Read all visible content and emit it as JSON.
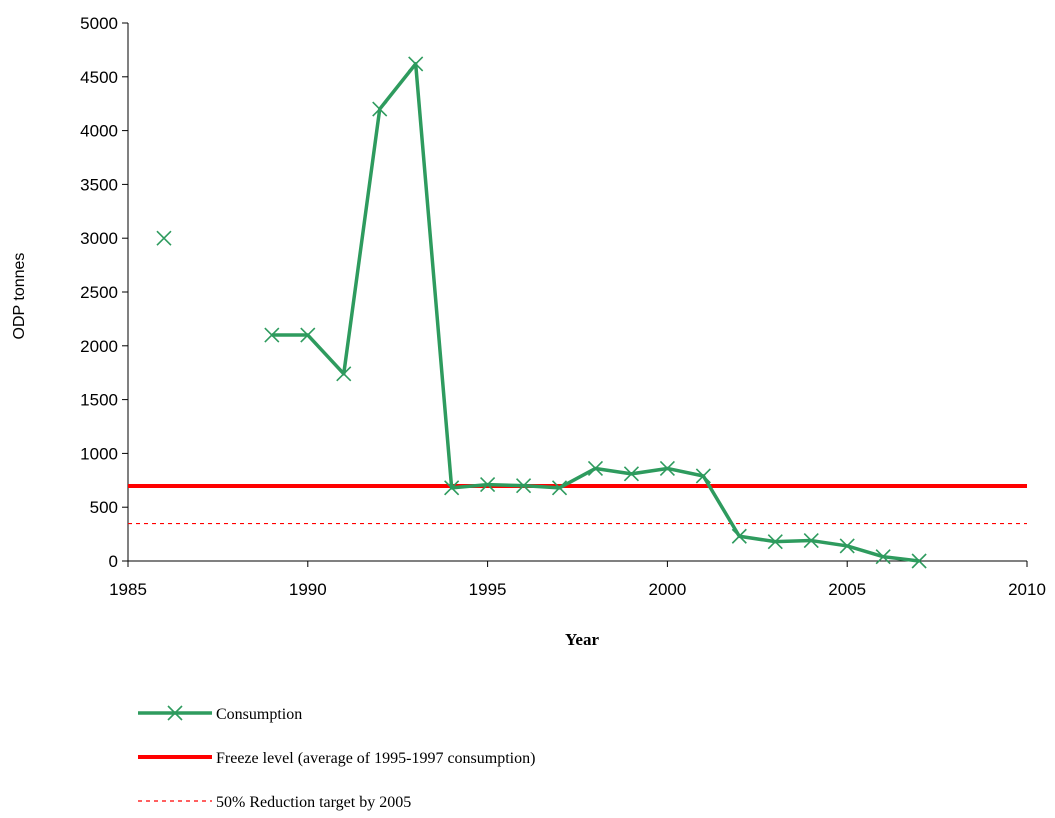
{
  "chart_data": {
    "type": "line",
    "title": "",
    "xlabel": "Year",
    "ylabel": "ODP tonnes",
    "xlim": [
      1985,
      2010
    ],
    "ylim": [
      0,
      5000
    ],
    "xticks": [
      1985,
      1990,
      1995,
      2000,
      2005,
      2010
    ],
    "yticks": [
      0,
      500,
      1000,
      1500,
      2000,
      2500,
      3000,
      3500,
      4000,
      4500,
      5000
    ],
    "grid": false,
    "legend_position": "bottom",
    "colors": {
      "consumption": "#2e9b5e",
      "freeze": "#ff0000",
      "reduction": "#ff0000"
    },
    "series": [
      {
        "name": "Consumption",
        "style": "line-with-x-markers",
        "points": [
          {
            "x": 1986,
            "y": 3000
          },
          {
            "x": 1989,
            "y": 2100
          },
          {
            "x": 1990,
            "y": 2100
          },
          {
            "x": 1991,
            "y": 1740
          },
          {
            "x": 1992,
            "y": 4200
          },
          {
            "x": 1993,
            "y": 4620
          },
          {
            "x": 1994,
            "y": 680
          },
          {
            "x": 1995,
            "y": 710
          },
          {
            "x": 1996,
            "y": 700
          },
          {
            "x": 1997,
            "y": 680
          },
          {
            "x": 1998,
            "y": 860
          },
          {
            "x": 1999,
            "y": 810
          },
          {
            "x": 2000,
            "y": 860
          },
          {
            "x": 2001,
            "y": 790
          },
          {
            "x": 2002,
            "y": 230
          },
          {
            "x": 2003,
            "y": 180
          },
          {
            "x": 2004,
            "y": 190
          },
          {
            "x": 2005,
            "y": 140
          },
          {
            "x": 2006,
            "y": 40
          },
          {
            "x": 2007,
            "y": 0
          }
        ],
        "gaps_after_x": [
          1986
        ]
      },
      {
        "name": "Freeze level (average of 1995-1997 consumption)",
        "style": "solid-thick",
        "y": 697
      },
      {
        "name": "50% Reduction target by 2005",
        "style": "dashed",
        "y": 348
      }
    ]
  }
}
